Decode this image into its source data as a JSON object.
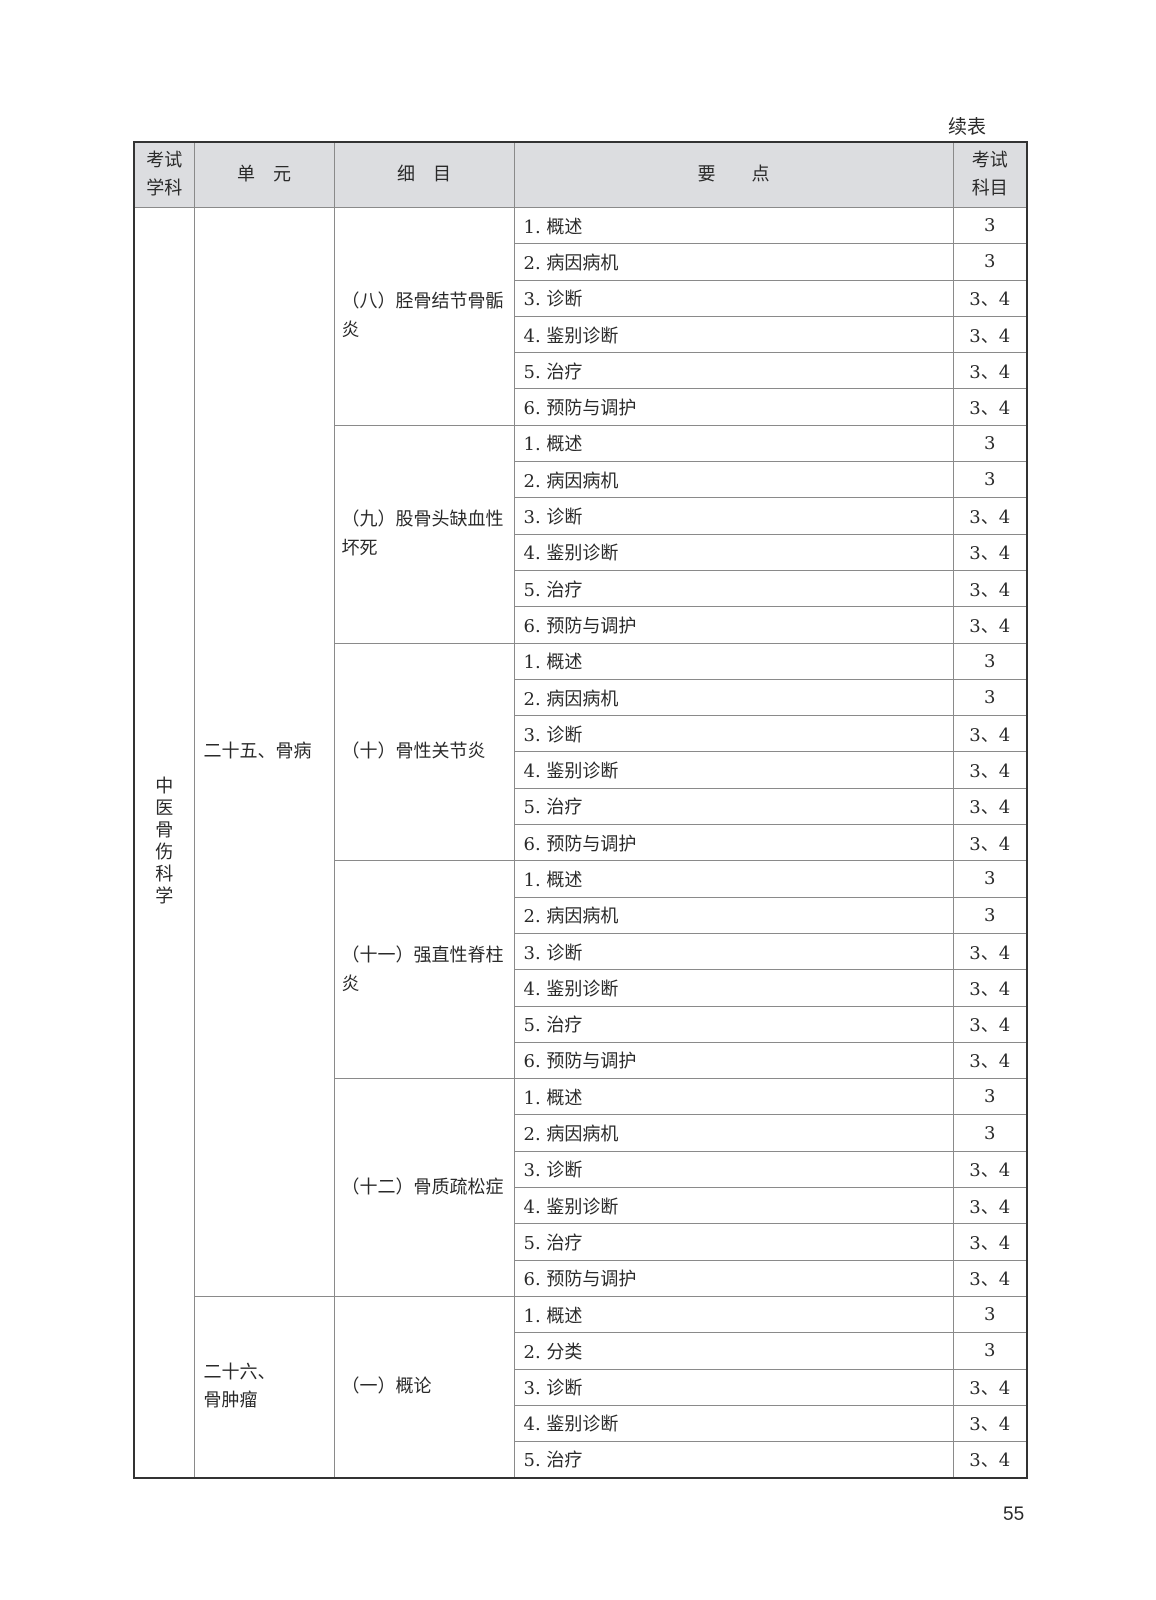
{
  "continued_label": "续表",
  "page_number": "55",
  "header": {
    "subject": "考试学科",
    "unit": "单　元",
    "item": "细　目",
    "points": "要　　点",
    "exam": "考试科目"
  },
  "subject": "中医骨伤科学",
  "colors": {
    "header_bg": "#dcdde0",
    "border": "#8a8a8a"
  },
  "units": [
    {
      "name": "二十五、骨病",
      "items": [
        {
          "name": "（八）胫骨结节骨骺炎",
          "points": [
            {
              "label": "1. 概述",
              "exam": "3"
            },
            {
              "label": "2. 病因病机",
              "exam": "3"
            },
            {
              "label": "3. 诊断",
              "exam": "3、4"
            },
            {
              "label": "4. 鉴别诊断",
              "exam": "3、4"
            },
            {
              "label": "5. 治疗",
              "exam": "3、4"
            },
            {
              "label": "6. 预防与调护",
              "exam": "3、4"
            }
          ]
        },
        {
          "name": "（九）股骨头缺血性坏死",
          "points": [
            {
              "label": "1. 概述",
              "exam": "3"
            },
            {
              "label": "2. 病因病机",
              "exam": "3"
            },
            {
              "label": "3. 诊断",
              "exam": "3、4"
            },
            {
              "label": "4. 鉴别诊断",
              "exam": "3、4"
            },
            {
              "label": "5. 治疗",
              "exam": "3、4"
            },
            {
              "label": "6. 预防与调护",
              "exam": "3、4"
            }
          ]
        },
        {
          "name": "（十）骨性关节炎",
          "points": [
            {
              "label": "1. 概述",
              "exam": "3"
            },
            {
              "label": "2. 病因病机",
              "exam": "3"
            },
            {
              "label": "3. 诊断",
              "exam": "3、4"
            },
            {
              "label": "4. 鉴别诊断",
              "exam": "3、4"
            },
            {
              "label": "5. 治疗",
              "exam": "3、4"
            },
            {
              "label": "6. 预防与调护",
              "exam": "3、4"
            }
          ]
        },
        {
          "name": "（十一）强直性脊柱炎",
          "points": [
            {
              "label": "1. 概述",
              "exam": "3"
            },
            {
              "label": "2. 病因病机",
              "exam": "3"
            },
            {
              "label": "3. 诊断",
              "exam": "3、4"
            },
            {
              "label": "4. 鉴别诊断",
              "exam": "3、4"
            },
            {
              "label": "5. 治疗",
              "exam": "3、4"
            },
            {
              "label": "6. 预防与调护",
              "exam": "3、4"
            }
          ]
        },
        {
          "name": "（十二）骨质疏松症",
          "points": [
            {
              "label": "1. 概述",
              "exam": "3"
            },
            {
              "label": "2. 病因病机",
              "exam": "3"
            },
            {
              "label": "3. 诊断",
              "exam": "3、4"
            },
            {
              "label": "4. 鉴别诊断",
              "exam": "3、4"
            },
            {
              "label": "5. 治疗",
              "exam": "3、4"
            },
            {
              "label": "6. 预防与调护",
              "exam": "3、4"
            }
          ]
        }
      ]
    },
    {
      "name": "二十六、骨肿瘤",
      "items": [
        {
          "name": "（一）概论",
          "points": [
            {
              "label": "1. 概述",
              "exam": "3"
            },
            {
              "label": "2. 分类",
              "exam": "3"
            },
            {
              "label": "3. 诊断",
              "exam": "3、4"
            },
            {
              "label": "4. 鉴别诊断",
              "exam": "3、4"
            },
            {
              "label": "5. 治疗",
              "exam": "3、4"
            }
          ]
        }
      ]
    }
  ]
}
